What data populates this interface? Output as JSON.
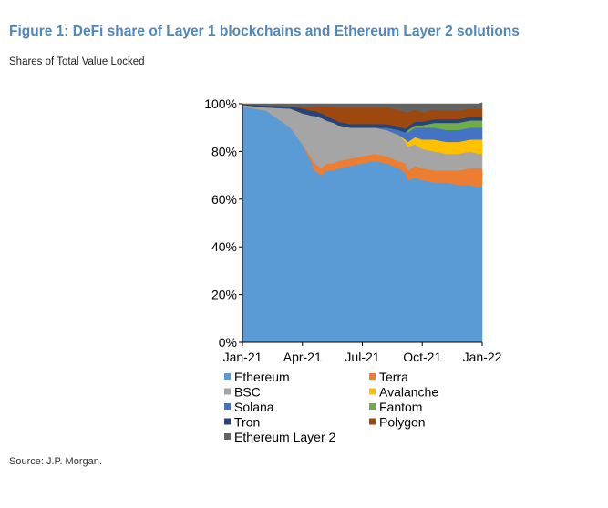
{
  "figure": {
    "title": "Figure 1: DeFi share of Layer 1 blockchains and Ethereum Layer 2 solutions",
    "subtitle": "Shares of Total Value Locked",
    "source": "Source: J.P. Morgan."
  },
  "chart_data": {
    "type": "area",
    "stacked": true,
    "unit": "percent",
    "x_tick_labels": [
      "Jan-21",
      "Apr-21",
      "Jul-21",
      "Oct-21",
      "Jan-22"
    ],
    "y_tick_labels": [
      "0%",
      "20%",
      "40%",
      "60%",
      "80%",
      "100%"
    ],
    "ylim": [
      0,
      100
    ],
    "legend_position": "bottom",
    "x": [
      0,
      0.1,
      0.2,
      0.25,
      0.29,
      0.3,
      0.33,
      0.35,
      0.38,
      0.4,
      0.45,
      0.5,
      0.55,
      0.6,
      0.65,
      0.68,
      0.69,
      0.72,
      0.75,
      0.8,
      0.85,
      0.9,
      0.95,
      0.985,
      1.0
    ],
    "series": [
      {
        "name": "Ethereum",
        "color": "#5b9bd5",
        "values": [
          99,
          97,
          90,
          83,
          75,
          72,
          70,
          72,
          72,
          73,
          74,
          75,
          76,
          75,
          73,
          71,
          68,
          69,
          68,
          67,
          67,
          66,
          66,
          65,
          66
        ]
      },
      {
        "name": "Terra",
        "color": "#ed7d31",
        "values": [
          0,
          0,
          0,
          0,
          2,
          3,
          3,
          3,
          3,
          3,
          3,
          3,
          3,
          3,
          3,
          4,
          4,
          5,
          5,
          5,
          5,
          6,
          7,
          8,
          7
        ]
      },
      {
        "name": "BSC",
        "color": "#a5a5a5",
        "values": [
          0.5,
          1.5,
          8,
          13,
          18,
          20,
          21,
          18,
          17,
          15,
          13,
          12,
          11,
          11,
          11,
          9,
          10,
          9,
          8,
          8,
          7,
          7,
          7,
          6,
          6
        ]
      },
      {
        "name": "Avalanche",
        "color": "#ffc000",
        "values": [
          0,
          0,
          0,
          0,
          0,
          0,
          0,
          0,
          0,
          0,
          0,
          0,
          0,
          0,
          0,
          1,
          2,
          3,
          4,
          5,
          5,
          5,
          5,
          6,
          6
        ]
      },
      {
        "name": "Solana",
        "color": "#4472c4",
        "values": [
          0,
          0,
          0,
          0,
          0,
          0,
          0,
          0,
          0,
          0,
          0,
          0,
          0,
          1,
          2,
          3,
          4,
          4,
          5,
          5,
          5,
          5,
          5,
          5,
          5
        ]
      },
      {
        "name": "Fantom",
        "color": "#70ad47",
        "values": [
          0,
          0,
          0,
          0,
          0,
          0,
          0,
          0,
          0,
          0,
          0,
          0,
          0,
          0,
          0,
          0,
          1,
          1,
          1,
          2,
          3,
          3,
          3,
          3,
          3
        ]
      },
      {
        "name": "Tron",
        "color": "#264478",
        "values": [
          0.3,
          0.8,
          1,
          2,
          2,
          2,
          2,
          2,
          1.5,
          1.5,
          1.5,
          1.5,
          1.5,
          1.5,
          1.5,
          1.5,
          1.5,
          1.5,
          1.5,
          1.5,
          1.5,
          1.5,
          1.5,
          1.5,
          1.5
        ]
      },
      {
        "name": "Polygon",
        "color": "#9e480e",
        "values": [
          0,
          0,
          0,
          0.5,
          1.5,
          2,
          3,
          4,
          5,
          6,
          7,
          7,
          7,
          7,
          7,
          7,
          6,
          5,
          4,
          4,
          3.5,
          3.5,
          3.5,
          3.5,
          3.5
        ]
      },
      {
        "name": "Ethereum Layer 2",
        "color": "#636363",
        "values": [
          0.2,
          0.7,
          1,
          1.5,
          1.5,
          1,
          1,
          1,
          1.5,
          1.5,
          1.5,
          1.5,
          1.5,
          1.5,
          2.5,
          3.5,
          3.5,
          2.5,
          3.5,
          2.5,
          3,
          3,
          2,
          2,
          2.5
        ]
      }
    ]
  }
}
